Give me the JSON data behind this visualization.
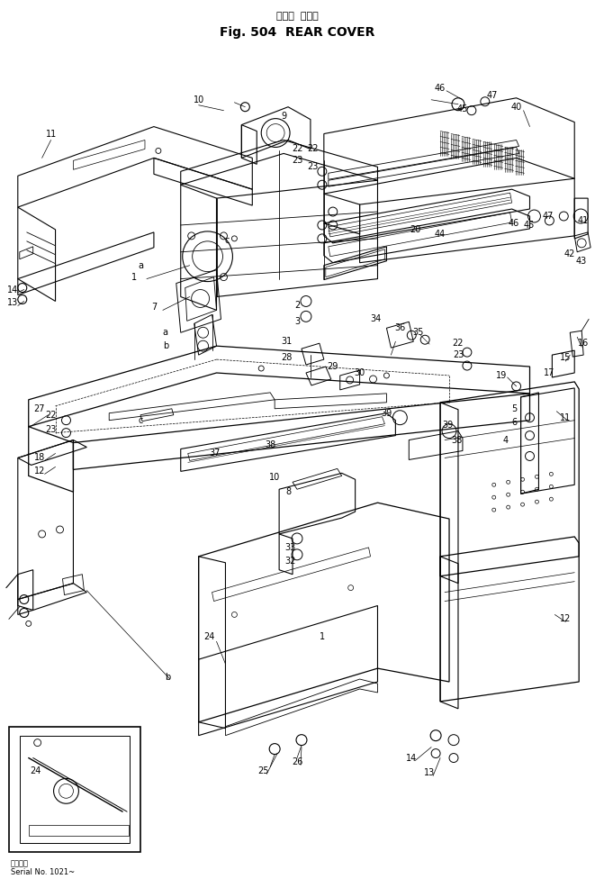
{
  "title_japanese": "リヤー  カバー",
  "title_english": "Fig. 504  REAR COVER",
  "footer_japanese": "適用号機",
  "footer_english": "Serial No. 1021~",
  "bg_color": "#ffffff",
  "line_color": "#000000",
  "fig_width": 6.61,
  "fig_height": 9.76,
  "dpi": 100
}
